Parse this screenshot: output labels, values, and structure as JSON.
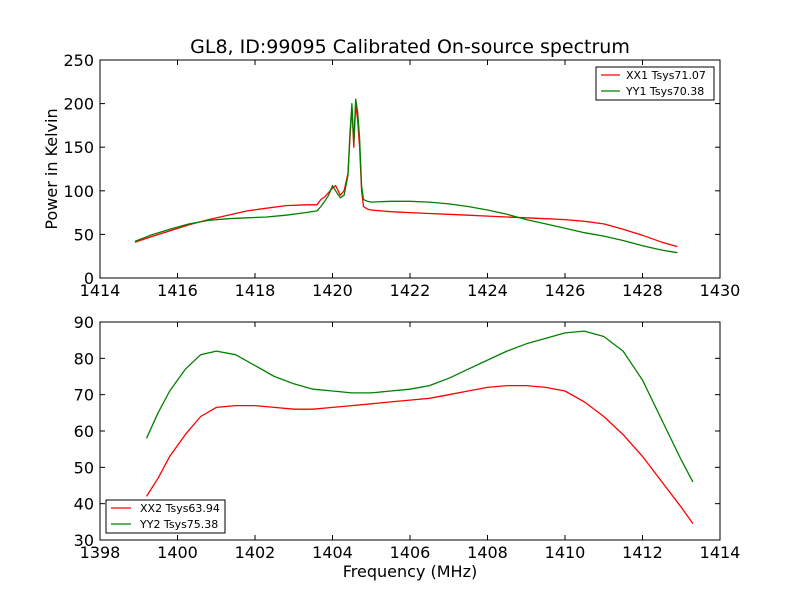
{
  "figure": {
    "title": "GL8, ID:99095 Calibrated On-source spectrum",
    "background": "#ffffff"
  },
  "chart_data": [
    {
      "type": "line",
      "title": "GL8, ID:99095 Calibrated On-source spectrum",
      "xlabel": "",
      "ylabel": "Power in Kelvin",
      "xlim": [
        1414,
        1430
      ],
      "ylim": [
        0,
        250
      ],
      "xticks": [
        "1414",
        "1416",
        "1418",
        "1420",
        "1422",
        "1424",
        "1426",
        "1428",
        "1430"
      ],
      "yticks": [
        "0",
        "50",
        "100",
        "150",
        "200",
        "250"
      ],
      "grid": false,
      "legend": "top-right",
      "series": [
        {
          "name": "XX1 Tsys71.07",
          "color": "#ff0000",
          "x": [
            1414.9,
            1415.3,
            1415.8,
            1416.3,
            1416.8,
            1417.3,
            1417.8,
            1418.3,
            1418.8,
            1419.3,
            1419.6,
            1419.7,
            1419.8,
            1419.9,
            1420.0,
            1420.08,
            1420.2,
            1420.3,
            1420.4,
            1420.45,
            1420.5,
            1420.55,
            1420.6,
            1420.65,
            1420.7,
            1420.75,
            1420.8,
            1420.9,
            1421.0,
            1421.5,
            1422.0,
            1422.5,
            1423.0,
            1423.5,
            1424.0,
            1424.5,
            1425.0,
            1425.5,
            1426.0,
            1426.5,
            1427.0,
            1427.5,
            1428.0,
            1428.5,
            1428.9
          ],
          "y": [
            41,
            47,
            54,
            61,
            67,
            72,
            77,
            80,
            83,
            84,
            84,
            90,
            93,
            98,
            103,
            106,
            95,
            100,
            120,
            160,
            195,
            150,
            200,
            180,
            150,
            100,
            82,
            79,
            78,
            76,
            75,
            74,
            73,
            72,
            71,
            70,
            69,
            68,
            67,
            65,
            62,
            56,
            49,
            41,
            36
          ]
        },
        {
          "name": "YY1 Tsys70.38",
          "color": "#008000",
          "x": [
            1414.9,
            1415.3,
            1415.8,
            1416.3,
            1416.8,
            1417.3,
            1417.8,
            1418.3,
            1418.8,
            1419.3,
            1419.6,
            1419.7,
            1419.8,
            1419.9,
            1420.0,
            1420.08,
            1420.2,
            1420.3,
            1420.4,
            1420.45,
            1420.5,
            1420.55,
            1420.6,
            1420.65,
            1420.7,
            1420.75,
            1420.8,
            1420.9,
            1421.0,
            1421.5,
            1422.0,
            1422.5,
            1423.0,
            1423.5,
            1424.0,
            1424.5,
            1425.0,
            1425.5,
            1426.0,
            1426.5,
            1427.0,
            1427.5,
            1428.0,
            1428.5,
            1428.9
          ],
          "y": [
            42,
            49,
            56,
            62,
            66,
            68,
            69,
            70,
            72,
            75,
            77,
            82,
            88,
            95,
            106,
            100,
            92,
            95,
            118,
            165,
            200,
            155,
            205,
            190,
            160,
            105,
            90,
            88,
            87,
            88,
            88,
            87,
            85,
            82,
            78,
            73,
            67,
            62,
            57,
            52,
            48,
            43,
            37,
            32,
            29
          ]
        }
      ]
    },
    {
      "type": "line",
      "title": "",
      "xlabel": "Frequency (MHz)",
      "ylabel": "",
      "xlim": [
        1398,
        1414
      ],
      "ylim": [
        30,
        90
      ],
      "xticks": [
        "1398",
        "1400",
        "1402",
        "1404",
        "1406",
        "1408",
        "1410",
        "1412",
        "1414"
      ],
      "yticks": [
        "30",
        "40",
        "50",
        "60",
        "70",
        "80",
        "90"
      ],
      "grid": false,
      "legend": "bottom-left",
      "series": [
        {
          "name": "XX2 Tsys63.94",
          "color": "#ff0000",
          "x": [
            1399.2,
            1399.5,
            1399.8,
            1400.2,
            1400.6,
            1401.0,
            1401.5,
            1402.0,
            1402.5,
            1403.0,
            1403.5,
            1404.0,
            1404.5,
            1405.0,
            1405.5,
            1406.0,
            1406.5,
            1407.0,
            1407.5,
            1408.0,
            1408.5,
            1409.0,
            1409.5,
            1410.0,
            1410.5,
            1411.0,
            1411.5,
            1412.0,
            1412.5,
            1413.0,
            1413.3
          ],
          "y": [
            42,
            47,
            53,
            59,
            64,
            66.5,
            67,
            67,
            66.5,
            66,
            66,
            66.5,
            67,
            67.5,
            68,
            68.5,
            69,
            70,
            71,
            72,
            72.5,
            72.5,
            72,
            71,
            68,
            64,
            59,
            53,
            46,
            39,
            34.5
          ]
        },
        {
          "name": "YY2 Tsys75.38",
          "color": "#008000",
          "x": [
            1399.2,
            1399.5,
            1399.8,
            1400.2,
            1400.6,
            1401.0,
            1401.5,
            1402.0,
            1402.5,
            1403.0,
            1403.5,
            1404.0,
            1404.5,
            1405.0,
            1405.5,
            1406.0,
            1406.5,
            1407.0,
            1407.5,
            1408.0,
            1408.5,
            1409.0,
            1409.5,
            1410.0,
            1410.5,
            1411.0,
            1411.5,
            1412.0,
            1412.5,
            1413.0,
            1413.3
          ],
          "y": [
            58,
            65,
            71,
            77,
            81,
            82,
            81,
            78,
            75,
            73,
            71.5,
            71,
            70.5,
            70.5,
            71,
            71.5,
            72.5,
            74.5,
            77,
            79.5,
            82,
            84,
            85.5,
            87,
            87.5,
            86,
            82,
            74,
            63,
            52,
            46
          ]
        }
      ]
    }
  ]
}
